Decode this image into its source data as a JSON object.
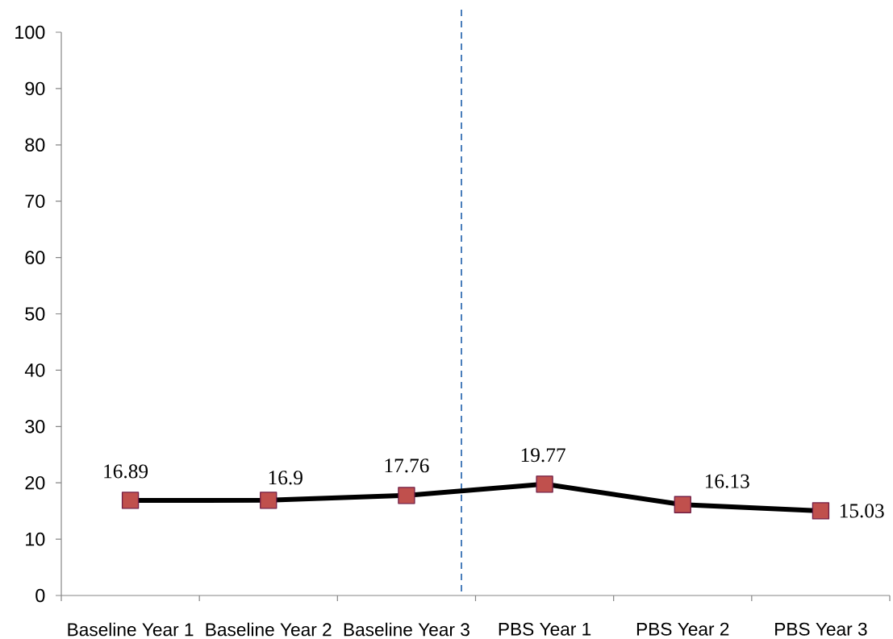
{
  "chart_data": {
    "type": "line",
    "categories": [
      "Baseline Year 1",
      "Baseline Year 2",
      "Baseline Year 3",
      "PBS Year 1",
      "PBS Year 2",
      "PBS Year 3"
    ],
    "values": [
      16.89,
      16.9,
      17.76,
      19.77,
      16.13,
      15.03
    ],
    "color": "#000000",
    "colors": [
      "#c0504d",
      "#c0504d",
      "#c0504d",
      "#c0504d",
      "#c0504d",
      "#c0504d"
    ],
    "marker": "square",
    "data_labels": true,
    "ylim": [
      0,
      100
    ],
    "yticks": [
      0,
      10,
      20,
      30,
      40,
      50,
      60,
      70,
      80,
      90,
      100
    ]
  }
}
